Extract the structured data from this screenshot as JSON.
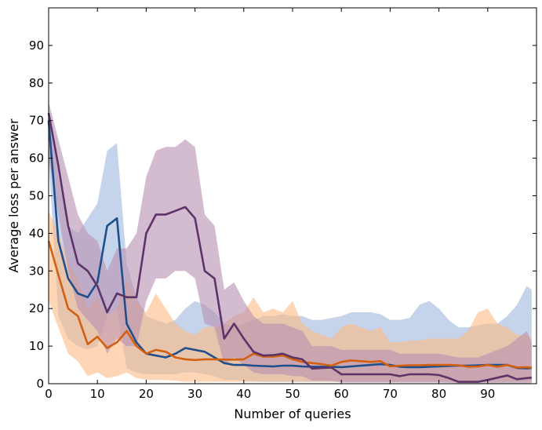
{
  "chart_data": {
    "type": "line",
    "title": "",
    "xlabel": "Number of queries",
    "ylabel": "Average loss per answer",
    "xlim": [
      0,
      100
    ],
    "ylim": [
      0,
      100
    ],
    "xticks": [
      0,
      10,
      20,
      30,
      40,
      50,
      60,
      70,
      80,
      90
    ],
    "yticks": [
      0,
      10,
      20,
      30,
      40,
      50,
      60,
      70,
      80,
      90
    ],
    "grid": false,
    "legend": "none",
    "x": [
      0,
      2,
      4,
      6,
      8,
      10,
      12,
      14,
      16,
      18,
      20,
      22,
      24,
      26,
      28,
      30,
      32,
      34,
      36,
      38,
      40,
      42,
      44,
      46,
      48,
      50,
      52,
      54,
      56,
      58,
      60,
      62,
      64,
      66,
      68,
      70,
      72,
      74,
      76,
      78,
      80,
      82,
      84,
      86,
      88,
      90,
      92,
      94,
      96,
      98,
      99
    ],
    "series": [
      {
        "color": "#1f4e8c",
        "band_color": "#9fb8dc",
        "values": [
          70,
          38,
          28,
          24,
          23,
          27,
          42,
          44,
          16,
          11,
          8,
          7.5,
          7,
          8,
          9.5,
          9,
          8.5,
          7,
          5.5,
          5,
          5,
          4.8,
          4.7,
          4.6,
          4.8,
          4.8,
          4.6,
          4.5,
          4.5,
          4.5,
          4.4,
          4.6,
          4.8,
          5,
          5.2,
          5,
          4.5,
          4.4,
          4.4,
          4.5,
          4.6,
          4.7,
          4.8,
          4.8,
          4.9,
          5,
          5,
          5,
          4.2,
          4.1,
          4.2
        ],
        "lower": [
          60,
          18,
          12,
          10,
          9,
          10,
          18,
          20,
          4,
          3,
          2.5,
          2.5,
          2.5,
          2.5,
          3,
          3,
          2.5,
          2,
          1,
          1,
          0.8,
          0.6,
          0.5,
          0.5,
          0.5,
          0.5,
          0.5,
          0.5,
          0.5,
          0.5,
          0.5,
          0.5,
          0.5,
          0.5,
          0.5,
          0.5,
          0.5,
          0.5,
          0.5,
          0.5,
          0.5,
          0.5,
          0.5,
          0.5,
          0.5,
          0.5,
          0.5,
          0.5,
          0.5,
          0.5,
          0.5
        ],
        "upper": [
          73,
          55,
          42,
          40,
          44,
          48,
          62,
          64,
          32,
          23,
          18,
          17,
          16,
          17,
          20,
          22,
          21,
          19,
          16,
          15,
          16,
          17,
          18,
          18,
          18.5,
          18,
          18,
          17,
          17,
          17.5,
          18,
          19,
          19,
          19,
          18.5,
          17,
          17,
          17.5,
          21,
          22,
          20,
          17,
          15,
          15,
          15.5,
          16,
          16,
          18,
          21,
          26,
          25
        ]
      },
      {
        "color": "#d2600f",
        "band_color": "#fdbb84",
        "values": [
          38,
          29,
          20,
          18,
          10.5,
          12.5,
          9.5,
          11,
          14,
          10,
          8,
          9,
          8.5,
          7,
          6.5,
          6.3,
          6.5,
          6.5,
          6.4,
          6.4,
          6.5,
          8,
          7.2,
          7.2,
          7.5,
          6.5,
          5.8,
          5.5,
          5.2,
          4.8,
          5.8,
          6.2,
          6,
          5.8,
          6,
          4.6,
          4.8,
          4.9,
          4.9,
          5,
          5,
          5,
          4.9,
          4.5,
          4.6,
          5,
          4.5,
          5,
          4.3,
          4.4,
          4.3
        ],
        "lower": [
          22,
          15,
          8,
          6,
          2,
          3,
          1.5,
          2,
          3,
          1.5,
          1,
          1,
          1,
          0.8,
          0.5,
          0.5,
          0.5,
          0.5,
          0.5,
          0.5,
          0.5,
          0.5,
          0.5,
          0.5,
          0.5,
          0.5,
          0.5,
          0.5,
          0.5,
          0.5,
          0.5,
          0.5,
          0.5,
          0.5,
          0.5,
          0.5,
          0.5,
          0.5,
          0.5,
          0.5,
          0.5,
          0.5,
          0.5,
          0.5,
          0.5,
          0.5,
          0.5,
          0.5,
          0.5,
          0.5,
          0.5
        ],
        "upper": [
          46,
          40,
          32,
          28,
          20,
          23,
          18,
          20,
          28,
          22,
          19,
          24,
          20,
          16,
          14,
          13,
          15,
          15,
          16,
          18,
          19,
          23,
          19,
          20,
          19,
          22,
          16,
          14,
          13,
          12,
          15,
          16,
          15,
          14,
          15,
          11,
          11,
          11.5,
          11.5,
          12,
          12,
          12,
          12,
          14,
          19,
          20,
          16,
          15,
          13,
          13,
          12
        ]
      },
      {
        "color": "#5e3367",
        "band_color": "#b88fb0",
        "values": [
          72,
          58,
          42,
          32,
          30,
          26,
          19,
          24,
          23,
          23,
          40,
          45,
          45,
          46,
          47,
          44,
          30,
          28,
          12,
          16,
          12,
          8.5,
          7.5,
          7.6,
          8,
          7,
          6.5,
          4,
          4.2,
          4.3,
          2.5,
          2.5,
          2.5,
          2.5,
          2.5,
          2.5,
          2,
          2.5,
          2.5,
          2.5,
          2.3,
          1.5,
          0.5,
          0.5,
          0.5,
          1,
          1.6,
          2.2,
          1.2,
          1.5,
          1.6
        ],
        "lower": [
          60,
          45,
          30,
          20,
          17,
          14,
          8,
          12,
          10,
          10,
          22,
          28,
          28,
          30,
          30,
          28,
          16,
          15,
          5,
          7,
          5,
          3,
          2.5,
          2.5,
          2.5,
          2,
          2,
          0.8,
          0.8,
          0.8,
          0.3,
          0.3,
          0.3,
          0.3,
          0.3,
          0.3,
          0.3,
          0.3,
          0.3,
          0.3,
          0.3,
          0.2,
          0.1,
          0.1,
          0.1,
          0.1,
          0.1,
          0.1,
          0.1,
          0.1,
          0.1
        ],
        "upper": [
          75,
          65,
          55,
          45,
          40,
          38,
          30,
          36,
          36,
          40,
          55,
          62,
          63,
          63,
          65,
          63,
          45,
          42,
          25,
          27,
          22,
          18,
          16,
          16,
          16,
          15,
          14,
          10,
          10,
          10,
          9,
          9,
          9,
          9,
          9,
          9,
          8,
          8,
          8,
          8,
          8,
          7.5,
          7,
          7,
          7,
          8,
          9,
          10,
          12,
          14,
          11
        ]
      }
    ]
  }
}
